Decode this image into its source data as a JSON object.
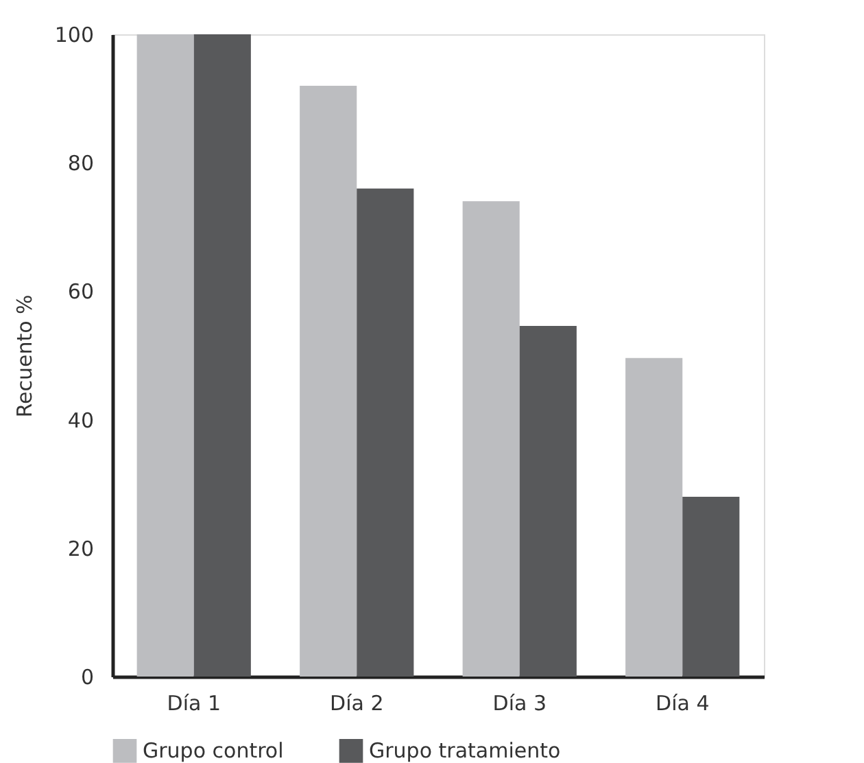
{
  "chart_data": {
    "type": "bar",
    "ylabel": "Recuento %",
    "categories": [
      "Día 1",
      "Día 2",
      "Día 3",
      "Día 4"
    ],
    "series": [
      {
        "name": "Grupo control",
        "color": "#bcbdc0",
        "values": [
          100,
          92,
          74,
          49.6
        ]
      },
      {
        "name": "Grupo tratamiento",
        "color": "#58595b",
        "values": [
          100,
          76,
          54.6,
          28
        ]
      }
    ],
    "ylim": [
      0,
      100
    ],
    "yticks": [
      0,
      20,
      40,
      60,
      80,
      100
    ],
    "grid": false,
    "legend": "bottom"
  }
}
